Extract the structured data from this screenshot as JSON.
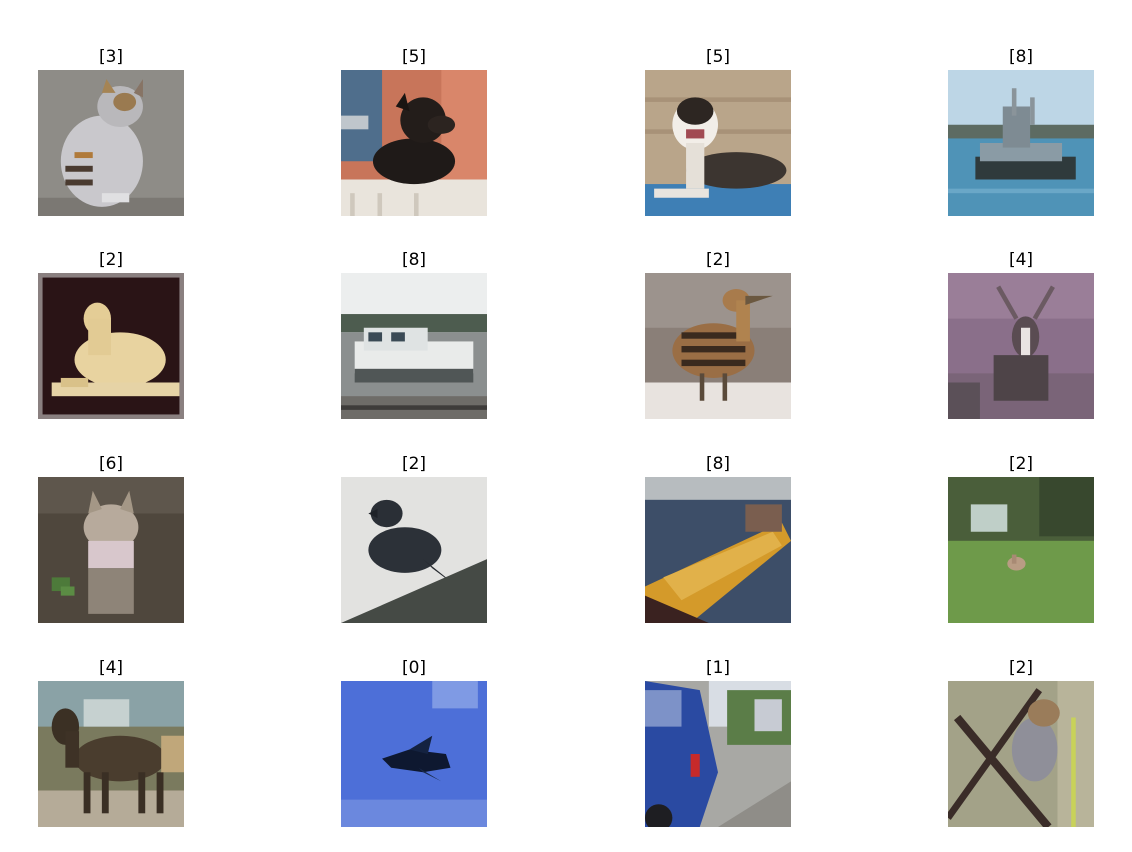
{
  "grid": {
    "rows": [
      [
        {
          "label": "[3]",
          "subject": "cat"
        },
        {
          "label": "[5]",
          "subject": "black-dog"
        },
        {
          "label": "[5]",
          "subject": "dog-lying"
        },
        {
          "label": "[8]",
          "subject": "ferry-ship"
        }
      ],
      [
        {
          "label": "[2]",
          "subject": "bird-figurine"
        },
        {
          "label": "[8]",
          "subject": "motorboat"
        },
        {
          "label": "[2]",
          "subject": "striped-bird"
        },
        {
          "label": "[4]",
          "subject": "deer"
        }
      ],
      [
        {
          "label": "[6]",
          "subject": "frog"
        },
        {
          "label": "[2]",
          "subject": "crow"
        },
        {
          "label": "[8]",
          "subject": "ship"
        },
        {
          "label": "[2]",
          "subject": "bird-in-field"
        }
      ],
      [
        {
          "label": "[4]",
          "subject": "deer-running"
        },
        {
          "label": "[0]",
          "subject": "airplane"
        },
        {
          "label": "[1]",
          "subject": "car"
        },
        {
          "label": "[2]",
          "subject": "bird-on-branch"
        }
      ]
    ]
  }
}
